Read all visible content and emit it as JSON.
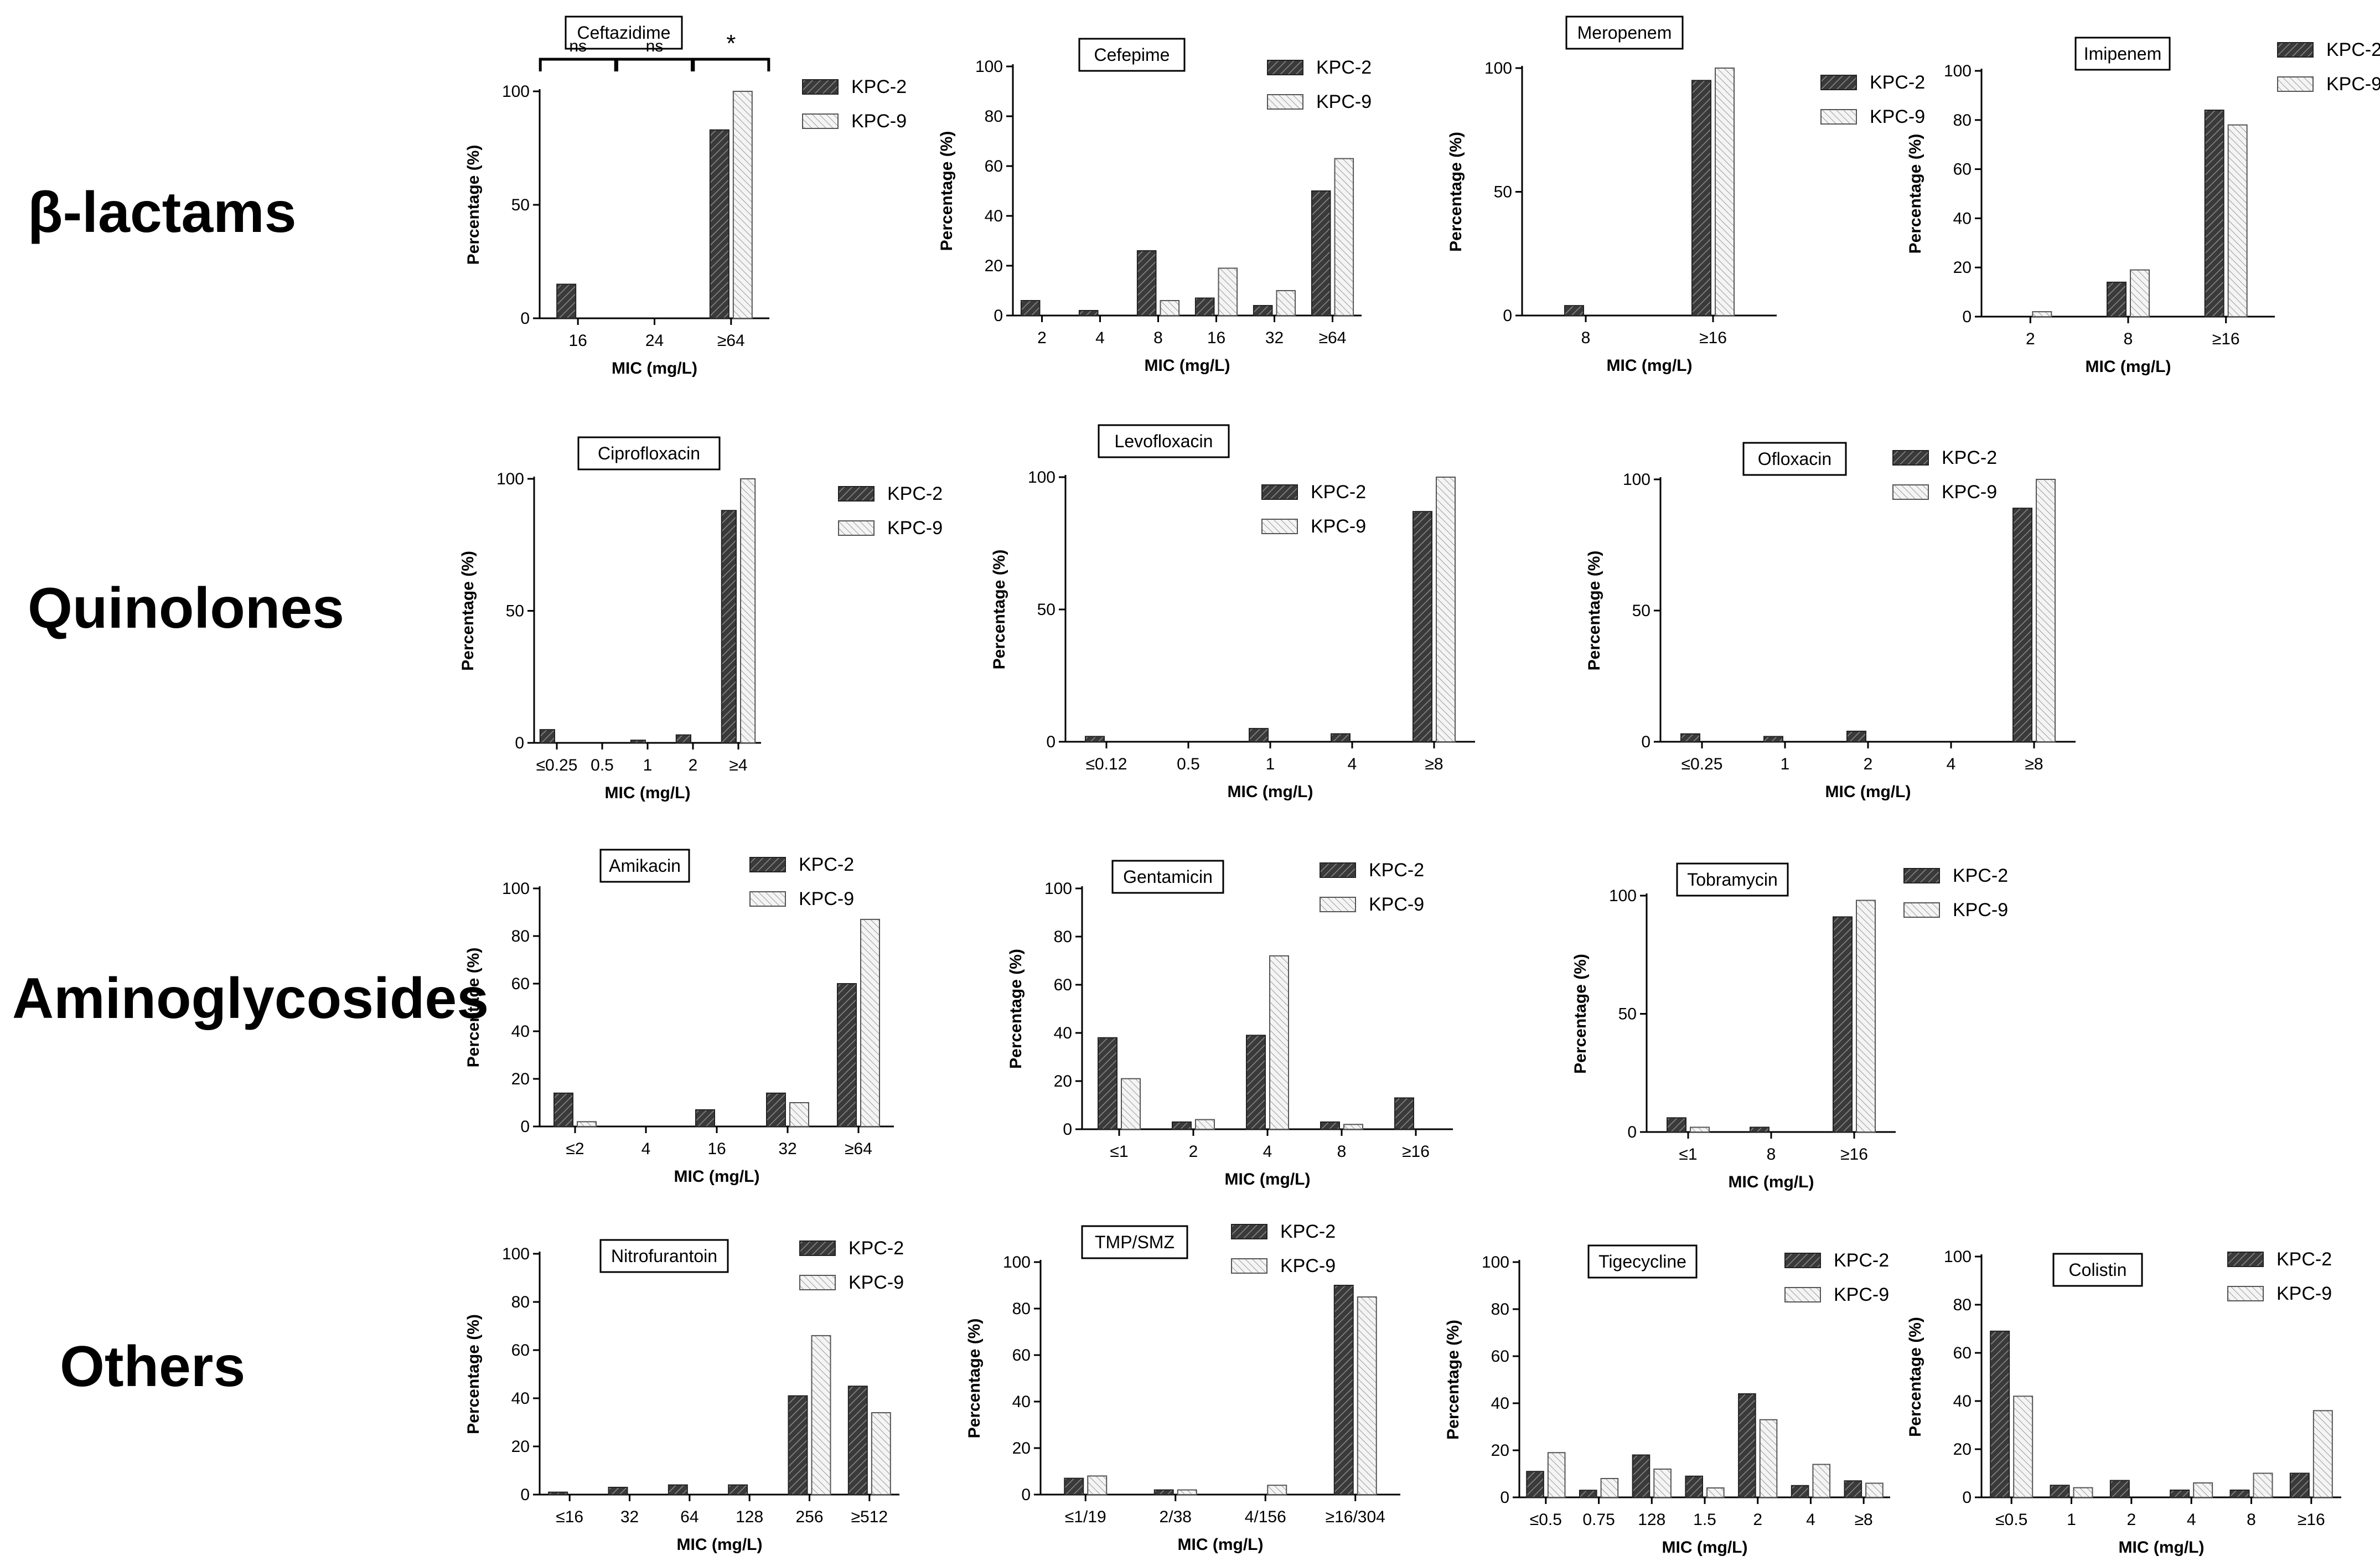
{
  "colors": {
    "kpc2": "#3a3a3a",
    "kpc9": "#e6e6e6",
    "axis": "#000000"
  },
  "legend": {
    "kpc2": "KPC-2",
    "kpc9": "KPC-9"
  },
  "rows": [
    {
      "label": "β-lactams"
    },
    {
      "label": "Quinolones"
    },
    {
      "label": "Aminoglycosides"
    },
    {
      "label": "Others"
    }
  ],
  "chart_data": [
    {
      "type": "bar",
      "title": "Ceftazidime",
      "xlabel": "MIC (mg/L)",
      "ylabel": "Percentage (%)",
      "categories": [
        "16",
        "24",
        "≥64"
      ],
      "ylim": [
        0,
        100
      ],
      "yticks": [
        0,
        50,
        100
      ],
      "series": [
        {
          "name": "KPC-2",
          "values": [
            15,
            0,
            83
          ]
        },
        {
          "name": "KPC-9",
          "values": [
            0,
            0,
            100
          ]
        }
      ],
      "significance": [
        {
          "from": 0,
          "to": 0,
          "label": "ns"
        },
        {
          "from": 1,
          "to": 1,
          "label": "ns"
        },
        {
          "from": 2,
          "to": 2,
          "label": "*"
        }
      ]
    },
    {
      "type": "bar",
      "title": "Cefepime",
      "xlabel": "MIC (mg/L)",
      "ylabel": "Percentage (%)",
      "categories": [
        "2",
        "4",
        "8",
        "16",
        "32",
        "≥64"
      ],
      "ylim": [
        0,
        100
      ],
      "yticks": [
        0,
        20,
        40,
        60,
        80,
        100
      ],
      "series": [
        {
          "name": "KPC-2",
          "values": [
            6,
            2,
            26,
            7,
            4,
            50
          ]
        },
        {
          "name": "KPC-9",
          "values": [
            0,
            0,
            6,
            19,
            10,
            63
          ]
        }
      ]
    },
    {
      "type": "bar",
      "title": "Meropenem",
      "xlabel": "MIC (mg/L)",
      "ylabel": "Percentage (%)",
      "categories": [
        "8",
        "≥16"
      ],
      "ylim": [
        0,
        100
      ],
      "yticks": [
        0,
        50,
        100
      ],
      "series": [
        {
          "name": "KPC-2",
          "values": [
            4,
            95
          ]
        },
        {
          "name": "KPC-9",
          "values": [
            0,
            100
          ]
        }
      ]
    },
    {
      "type": "bar",
      "title": "Imipenem",
      "xlabel": "MIC (mg/L)",
      "ylabel": "Percentage (%)",
      "categories": [
        "2",
        "8",
        "≥16"
      ],
      "ylim": [
        0,
        100
      ],
      "yticks": [
        0,
        20,
        40,
        60,
        80,
        100
      ],
      "series": [
        {
          "name": "KPC-2",
          "values": [
            0,
            14,
            84
          ]
        },
        {
          "name": "KPC-9",
          "values": [
            2,
            19,
            78
          ]
        }
      ]
    },
    {
      "type": "bar",
      "title": "Ciprofloxacin",
      "xlabel": "MIC (mg/L)",
      "ylabel": "Percentage (%)",
      "categories": [
        "≤0.25",
        "0.5",
        "1",
        "2",
        "≥4"
      ],
      "ylim": [
        0,
        100
      ],
      "yticks": [
        0,
        50,
        100
      ],
      "series": [
        {
          "name": "KPC-2",
          "values": [
            5,
            0,
            1,
            3,
            88
          ]
        },
        {
          "name": "KPC-9",
          "values": [
            0,
            0,
            0,
            0,
            100
          ]
        }
      ]
    },
    {
      "type": "bar",
      "title": "Levofloxacin",
      "xlabel": "MIC (mg/L)",
      "ylabel": "Percentage (%)",
      "categories": [
        "≤0.12",
        "0.5",
        "1",
        "4",
        "≥8"
      ],
      "ylim": [
        0,
        100
      ],
      "yticks": [
        0,
        50,
        100
      ],
      "series": [
        {
          "name": "KPC-2",
          "values": [
            2,
            0,
            5,
            3,
            87
          ]
        },
        {
          "name": "KPC-9",
          "values": [
            0,
            0,
            0,
            0,
            100
          ]
        }
      ]
    },
    {
      "type": "bar",
      "title": "Ofloxacin",
      "xlabel": "MIC (mg/L)",
      "ylabel": "Percentage (%)",
      "categories": [
        "≤0.25",
        "1",
        "2",
        "4",
        "≥8"
      ],
      "ylim": [
        0,
        100
      ],
      "yticks": [
        0,
        50,
        100
      ],
      "series": [
        {
          "name": "KPC-2",
          "values": [
            3,
            2,
            4,
            0,
            89
          ]
        },
        {
          "name": "KPC-9",
          "values": [
            0,
            0,
            0,
            0,
            100
          ]
        }
      ]
    },
    {
      "type": "bar",
      "title": "Amikacin",
      "xlabel": "MIC (mg/L)",
      "ylabel": "Percentage (%)",
      "categories": [
        "≤2",
        "4",
        "16",
        "32",
        "≥64"
      ],
      "ylim": [
        0,
        100
      ],
      "yticks": [
        0,
        20,
        40,
        60,
        80,
        100
      ],
      "series": [
        {
          "name": "KPC-2",
          "values": [
            14,
            0,
            7,
            14,
            60
          ]
        },
        {
          "name": "KPC-9",
          "values": [
            2,
            0,
            0,
            10,
            87
          ]
        }
      ]
    },
    {
      "type": "bar",
      "title": "Gentamicin",
      "xlabel": "MIC (mg/L)",
      "ylabel": "Percentage (%)",
      "categories": [
        "≤1",
        "2",
        "4",
        "8",
        "≥16"
      ],
      "ylim": [
        0,
        100
      ],
      "yticks": [
        0,
        20,
        40,
        60,
        80,
        100
      ],
      "series": [
        {
          "name": "KPC-2",
          "values": [
            38,
            3,
            39,
            3,
            13
          ]
        },
        {
          "name": "KPC-9",
          "values": [
            21,
            4,
            72,
            2,
            0
          ]
        }
      ]
    },
    {
      "type": "bar",
      "title": "Tobramycin",
      "xlabel": "MIC (mg/L)",
      "ylabel": "Percentage (%)",
      "categories": [
        "≤1",
        "8",
        "≥16"
      ],
      "ylim": [
        0,
        100
      ],
      "yticks": [
        0,
        50,
        100
      ],
      "series": [
        {
          "name": "KPC-2",
          "values": [
            6,
            2,
            91
          ]
        },
        {
          "name": "KPC-9",
          "values": [
            2,
            0,
            98
          ]
        }
      ]
    },
    {
      "type": "bar",
      "title": "Nitrofurantoin",
      "xlabel": "MIC (mg/L)",
      "ylabel": "Percentage (%)",
      "categories": [
        "≤16",
        "32",
        "64",
        "128",
        "256",
        "≥512"
      ],
      "ylim": [
        0,
        100
      ],
      "yticks": [
        0,
        20,
        40,
        60,
        80,
        100
      ],
      "series": [
        {
          "name": "KPC-2",
          "values": [
            1,
            3,
            4,
            4,
            41,
            45
          ]
        },
        {
          "name": "KPC-9",
          "values": [
            0,
            0,
            0,
            0,
            66,
            34
          ]
        }
      ]
    },
    {
      "type": "bar",
      "title": "TMP/SMZ",
      "xlabel": "MIC (mg/L)",
      "ylabel": "Percentage (%)",
      "categories": [
        "≤1/19",
        "2/38",
        "4/156",
        "≥16/304"
      ],
      "ylim": [
        0,
        100
      ],
      "yticks": [
        0,
        20,
        40,
        60,
        80,
        100
      ],
      "series": [
        {
          "name": "KPC-2",
          "values": [
            7,
            2,
            0,
            90
          ]
        },
        {
          "name": "KPC-9",
          "values": [
            8,
            2,
            4,
            85
          ]
        }
      ]
    },
    {
      "type": "bar",
      "title": "Tigecycline",
      "xlabel": "MIC (mg/L)",
      "ylabel": "Percentage (%)",
      "categories": [
        "≤0.5",
        "0.75",
        "128",
        "1.5",
        "2",
        "4",
        "≥8"
      ],
      "ylim": [
        0,
        100
      ],
      "yticks": [
        0,
        20,
        40,
        60,
        80,
        100
      ],
      "series": [
        {
          "name": "KPC-2",
          "values": [
            11,
            3,
            18,
            9,
            44,
            5,
            7
          ]
        },
        {
          "name": "KPC-9",
          "values": [
            19,
            8,
            12,
            4,
            33,
            14,
            6
          ]
        }
      ]
    },
    {
      "type": "bar",
      "title": "Colistin",
      "xlabel": "MIC (mg/L)",
      "ylabel": "Percentage (%)",
      "categories": [
        "≤0.5",
        "1",
        "2",
        "4",
        "8",
        "≥16"
      ],
      "ylim": [
        0,
        100
      ],
      "yticks": [
        0,
        20,
        40,
        60,
        80,
        100
      ],
      "series": [
        {
          "name": "KPC-2",
          "values": [
            69,
            5,
            7,
            3,
            3,
            10
          ]
        },
        {
          "name": "KPC-9",
          "values": [
            42,
            4,
            0,
            6,
            10,
            36
          ]
        }
      ]
    }
  ]
}
